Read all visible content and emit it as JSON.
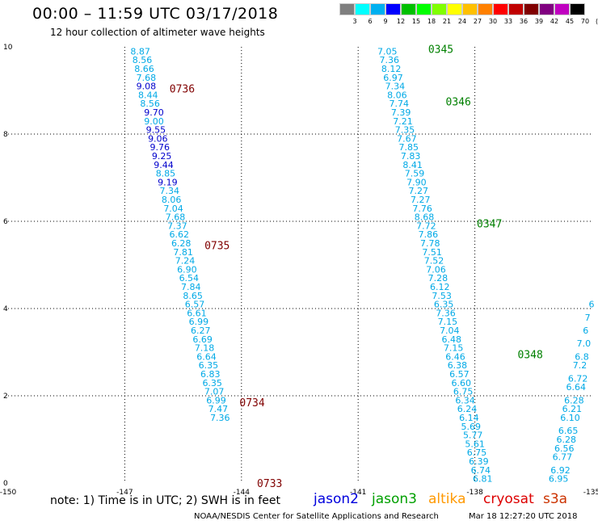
{
  "header": {
    "title": "00:00 – 11:59 UTC 03/17/2018",
    "subtitle": "12 hour collection of altimeter wave heights"
  },
  "color_scale": {
    "labels": [
      "3",
      "6",
      "9",
      "12",
      "15",
      "18",
      "21",
      "24",
      "27",
      "30",
      "33",
      "36",
      "39",
      "42",
      "45",
      "70",
      "(ft)"
    ],
    "colors": [
      "#7f7f7f",
      "#00ffff",
      "#00b0f0",
      "#0000ff",
      "#00c000",
      "#00ff00",
      "#80ff00",
      "#ffff00",
      "#ffc000",
      "#ff8000",
      "#ff0000",
      "#c00000",
      "#800000",
      "#800080",
      "#c000c0",
      "#000000"
    ]
  },
  "chart_data": {
    "type": "scatter",
    "xlim": [
      -150,
      -135
    ],
    "ylim": [
      0,
      10
    ],
    "xticks": [
      "-150",
      "-147",
      "-144",
      "-141",
      "-138",
      "-135"
    ],
    "yticks": [
      "0",
      "2",
      "4",
      "6",
      "8",
      "10"
    ],
    "grid": true,
    "tracks": [
      {
        "satellite": "jason2",
        "points": [
          {
            "x": -146.6,
            "y": 9.9,
            "v": "8.87"
          },
          {
            "x": -146.55,
            "y": 9.7,
            "v": "8.56"
          },
          {
            "x": -146.5,
            "y": 9.5,
            "v": "8.66"
          },
          {
            "x": -146.45,
            "y": 9.3,
            "v": "7.68"
          },
          {
            "x": -146.45,
            "y": 9.1,
            "v": "9.08"
          },
          {
            "x": -146.4,
            "y": 8.9,
            "v": "8.44"
          },
          {
            "x": -146.35,
            "y": 8.7,
            "v": "8.56"
          },
          {
            "x": -146.25,
            "y": 8.5,
            "v": "9.70"
          },
          {
            "x": -146.25,
            "y": 8.3,
            "v": "9.00"
          },
          {
            "x": -146.2,
            "y": 8.1,
            "v": "9.55"
          },
          {
            "x": -146.15,
            "y": 7.9,
            "v": "9.06"
          },
          {
            "x": -146.1,
            "y": 7.7,
            "v": "9.76"
          },
          {
            "x": -146.05,
            "y": 7.5,
            "v": "9.25"
          },
          {
            "x": -146.0,
            "y": 7.3,
            "v": "9.44"
          },
          {
            "x": -145.95,
            "y": 7.1,
            "v": "8.85"
          },
          {
            "x": -145.9,
            "y": 6.9,
            "v": "9.19"
          },
          {
            "x": -145.85,
            "y": 6.7,
            "v": "7.34"
          },
          {
            "x": -145.8,
            "y": 6.5,
            "v": "8.06"
          },
          {
            "x": -145.75,
            "y": 6.3,
            "v": "7.04"
          },
          {
            "x": -145.7,
            "y": 6.1,
            "v": "7.68"
          },
          {
            "x": -145.65,
            "y": 5.9,
            "v": "7.37"
          },
          {
            "x": -145.6,
            "y": 5.7,
            "v": "6.62"
          },
          {
            "x": -145.55,
            "y": 5.5,
            "v": "6.28"
          },
          {
            "x": -145.5,
            "y": 5.3,
            "v": "7.81"
          },
          {
            "x": -145.45,
            "y": 5.1,
            "v": "7.24"
          },
          {
            "x": -145.4,
            "y": 4.9,
            "v": "6.90"
          },
          {
            "x": -145.35,
            "y": 4.7,
            "v": "6.54"
          },
          {
            "x": -145.3,
            "y": 4.5,
            "v": "7.84"
          },
          {
            "x": -145.25,
            "y": 4.3,
            "v": "8.65"
          },
          {
            "x": -145.2,
            "y": 4.1,
            "v": "6.57"
          },
          {
            "x": -145.15,
            "y": 3.9,
            "v": "6.61"
          },
          {
            "x": -145.1,
            "y": 3.7,
            "v": "6.99"
          },
          {
            "x": -145.05,
            "y": 3.5,
            "v": "6.27"
          },
          {
            "x": -145.0,
            "y": 3.3,
            "v": "6.69"
          },
          {
            "x": -144.95,
            "y": 3.1,
            "v": "7.18"
          },
          {
            "x": -144.9,
            "y": 2.9,
            "v": "6.64"
          },
          {
            "x": -144.85,
            "y": 2.7,
            "v": "6.35"
          },
          {
            "x": -144.8,
            "y": 2.5,
            "v": "6.83"
          },
          {
            "x": -144.75,
            "y": 2.3,
            "v": "6.35"
          },
          {
            "x": -144.7,
            "y": 2.1,
            "v": "7.07"
          },
          {
            "x": -144.65,
            "y": 1.9,
            "v": "6.99"
          },
          {
            "x": -144.6,
            "y": 1.7,
            "v": "7.47"
          },
          {
            "x": -144.55,
            "y": 1.5,
            "v": "7.36"
          }
        ],
        "times": [
          {
            "x": -145.85,
            "y": 9.05,
            "label": "0736"
          },
          {
            "x": -144.95,
            "y": 5.45,
            "label": "0735"
          },
          {
            "x": -144.05,
            "y": 1.85,
            "label": "0734"
          },
          {
            "x": -143.6,
            "y": 0.0,
            "label": "0733"
          }
        ]
      },
      {
        "satellite": "jason3",
        "points": [
          {
            "x": -140.25,
            "y": 9.9,
            "v": "7.05"
          },
          {
            "x": -140.2,
            "y": 9.7,
            "v": "7.36"
          },
          {
            "x": -140.15,
            "y": 9.5,
            "v": "8.12"
          },
          {
            "x": -140.1,
            "y": 9.3,
            "v": "6.97"
          },
          {
            "x": -140.05,
            "y": 9.1,
            "v": "7.34"
          },
          {
            "x": -140.0,
            "y": 8.9,
            "v": "8.06"
          },
          {
            "x": -139.95,
            "y": 8.7,
            "v": "7.74"
          },
          {
            "x": -139.9,
            "y": 8.5,
            "v": "7.39"
          },
          {
            "x": -139.85,
            "y": 8.3,
            "v": "7.21"
          },
          {
            "x": -139.8,
            "y": 8.1,
            "v": "7.35"
          },
          {
            "x": -139.75,
            "y": 7.9,
            "v": "7.67"
          },
          {
            "x": -139.7,
            "y": 7.7,
            "v": "7.85"
          },
          {
            "x": -139.65,
            "y": 7.5,
            "v": "7.83"
          },
          {
            "x": -139.6,
            "y": 7.3,
            "v": "8.41"
          },
          {
            "x": -139.55,
            "y": 7.1,
            "v": "7.59"
          },
          {
            "x": -139.5,
            "y": 6.9,
            "v": "7.90"
          },
          {
            "x": -139.45,
            "y": 6.7,
            "v": "7.27"
          },
          {
            "x": -139.4,
            "y": 6.5,
            "v": "7.27"
          },
          {
            "x": -139.35,
            "y": 6.3,
            "v": "7.76"
          },
          {
            "x": -139.3,
            "y": 6.1,
            "v": "8.68"
          },
          {
            "x": -139.25,
            "y": 5.9,
            "v": "7.72"
          },
          {
            "x": -139.2,
            "y": 5.7,
            "v": "7.86"
          },
          {
            "x": -139.15,
            "y": 5.5,
            "v": "7.78"
          },
          {
            "x": -139.1,
            "y": 5.3,
            "v": "7.51"
          },
          {
            "x": -139.05,
            "y": 5.1,
            "v": "7.52"
          },
          {
            "x": -139.0,
            "y": 4.9,
            "v": "7.06"
          },
          {
            "x": -138.95,
            "y": 4.7,
            "v": "7.28"
          },
          {
            "x": -138.9,
            "y": 4.5,
            "v": "6.12"
          },
          {
            "x": -138.85,
            "y": 4.3,
            "v": "7.53"
          },
          {
            "x": -138.8,
            "y": 4.1,
            "v": "6.35"
          },
          {
            "x": -138.75,
            "y": 3.9,
            "v": "7.36"
          },
          {
            "x": -138.7,
            "y": 3.7,
            "v": "7.15"
          },
          {
            "x": -138.65,
            "y": 3.5,
            "v": "7.04"
          },
          {
            "x": -138.6,
            "y": 3.3,
            "v": "6.48"
          },
          {
            "x": -138.55,
            "y": 3.1,
            "v": "7.15"
          },
          {
            "x": -138.5,
            "y": 2.9,
            "v": "6.46"
          },
          {
            "x": -138.45,
            "y": 2.7,
            "v": "6.38"
          },
          {
            "x": -138.4,
            "y": 2.5,
            "v": "6.57"
          },
          {
            "x": -138.35,
            "y": 2.3,
            "v": "6.60"
          },
          {
            "x": -138.3,
            "y": 2.1,
            "v": "6.75"
          },
          {
            "x": -138.25,
            "y": 1.9,
            "v": "6.34"
          },
          {
            "x": -138.2,
            "y": 1.7,
            "v": "6.24"
          },
          {
            "x": -138.15,
            "y": 1.5,
            "v": "6.14"
          },
          {
            "x": -138.1,
            "y": 1.3,
            "v": "5.69"
          },
          {
            "x": -138.05,
            "y": 1.1,
            "v": "5.77"
          },
          {
            "x": -138.0,
            "y": 0.9,
            "v": "5.61"
          },
          {
            "x": -137.95,
            "y": 0.7,
            "v": "6.75"
          },
          {
            "x": -137.9,
            "y": 0.5,
            "v": "6.39"
          },
          {
            "x": -137.85,
            "y": 0.3,
            "v": "6.74"
          },
          {
            "x": -137.8,
            "y": 0.1,
            "v": "6.81"
          }
        ],
        "times": [
          {
            "x": -139.2,
            "y": 9.95,
            "label": "0345"
          },
          {
            "x": -138.75,
            "y": 8.75,
            "label": "0346"
          },
          {
            "x": -137.95,
            "y": 5.95,
            "label": "0347"
          },
          {
            "x": -136.9,
            "y": 2.95,
            "label": "0348"
          }
        ]
      },
      {
        "satellite": "jason3",
        "points": [
          {
            "x": -135.0,
            "y": 4.1,
            "v": "6"
          },
          {
            "x": -135.1,
            "y": 3.8,
            "v": "7"
          },
          {
            "x": -135.15,
            "y": 3.5,
            "v": "6"
          },
          {
            "x": -135.2,
            "y": 3.2,
            "v": "7.0"
          },
          {
            "x": -135.25,
            "y": 2.9,
            "v": "6.8"
          },
          {
            "x": -135.3,
            "y": 2.7,
            "v": "7.2"
          },
          {
            "x": -135.35,
            "y": 2.4,
            "v": "6.72"
          },
          {
            "x": -135.4,
            "y": 2.2,
            "v": "6.64"
          },
          {
            "x": -135.45,
            "y": 1.9,
            "v": "6.28"
          },
          {
            "x": -135.5,
            "y": 1.7,
            "v": "6.21"
          },
          {
            "x": -135.55,
            "y": 1.5,
            "v": "6.10"
          },
          {
            "x": -135.6,
            "y": 1.2,
            "v": "6.65"
          },
          {
            "x": -135.65,
            "y": 1.0,
            "v": "6.28"
          },
          {
            "x": -135.7,
            "y": 0.8,
            "v": "6.56"
          },
          {
            "x": -135.75,
            "y": 0.6,
            "v": "6.77"
          },
          {
            "x": -135.8,
            "y": 0.3,
            "v": "6.92"
          },
          {
            "x": -135.85,
            "y": 0.1,
            "v": "6.95"
          }
        ],
        "times": []
      }
    ]
  },
  "note": "note: 1) Time is in UTC; 2) SWH is in feet",
  "legend": [
    {
      "name": "jason2",
      "color": "#0000dd"
    },
    {
      "name": "jason3",
      "color": "#00a000"
    },
    {
      "name": "altika",
      "color": "#ff9900"
    },
    {
      "name": "cryosat",
      "color": "#dd0000"
    },
    {
      "name": "s3a",
      "color": "#cc3300"
    }
  ],
  "footer": {
    "credit": "NOAA/NESDIS Center for Satellite Applications and Research",
    "timestamp": "Mar 18 12:27:20 UTC 2018"
  }
}
